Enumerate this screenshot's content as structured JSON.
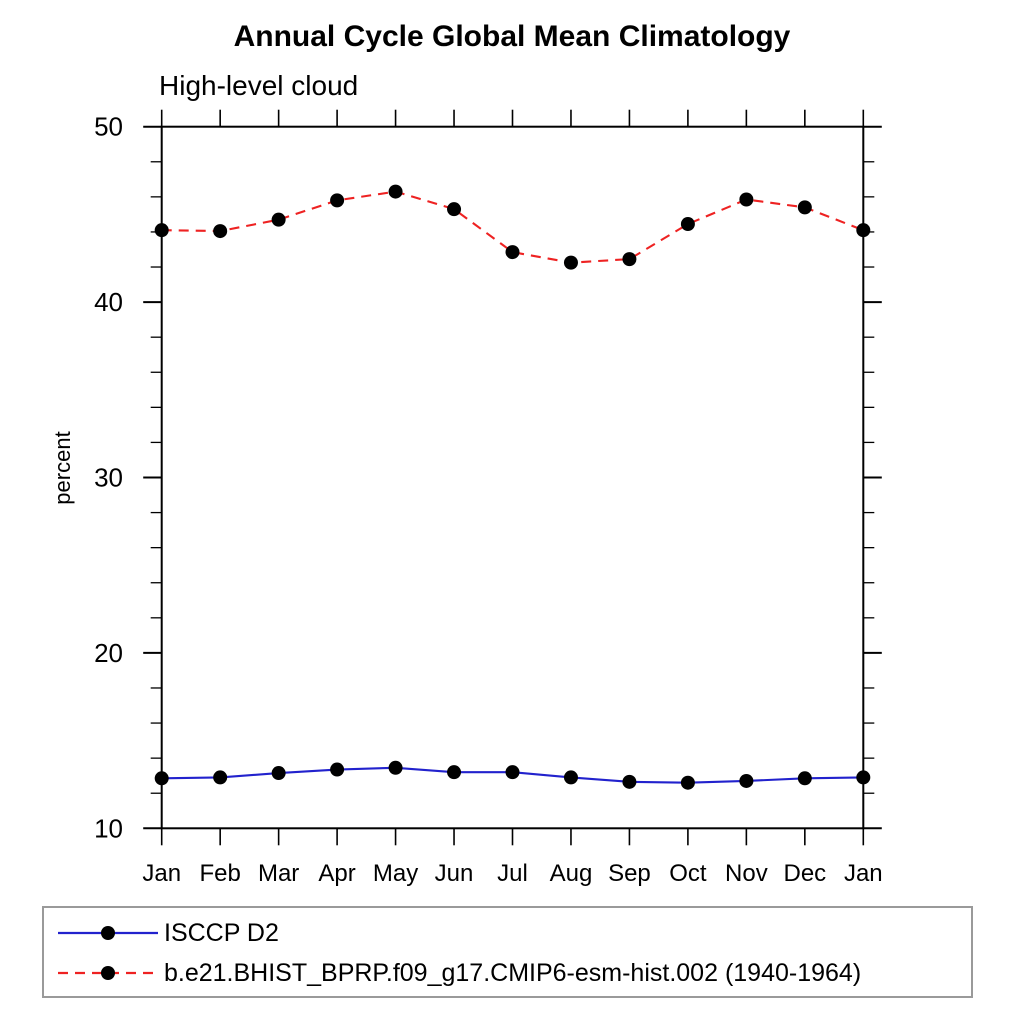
{
  "chart_data": {
    "type": "line",
    "title": "Annual Cycle Global Mean Climatology",
    "subtitle": "High-level cloud",
    "ylabel": "percent",
    "xlabel": "",
    "x_tick_labels": [
      "Jan",
      "Feb",
      "Mar",
      "Apr",
      "May",
      "Jun",
      "Jul",
      "Aug",
      "Sep",
      "Oct",
      "Nov",
      "Dec",
      "Jan"
    ],
    "ylim": [
      10,
      50
    ],
    "y_major_ticks": [
      10,
      20,
      30,
      40,
      50
    ],
    "y_minor_step": 2,
    "grid": false,
    "legend_position": "bottom",
    "marker_color": "#000000",
    "axis_color": "#000000",
    "legend_border_color": "#9a9a9a",
    "series": [
      {
        "name": "ISCCP D2",
        "color": "#2222cd",
        "style": "solid",
        "values": [
          12.85,
          12.9,
          13.15,
          13.35,
          13.45,
          13.2,
          13.2,
          12.9,
          12.65,
          12.6,
          12.7,
          12.85,
          12.9
        ]
      },
      {
        "name": "b.e21.BHIST_BPRP.f09_g17.CMIP6-esm-hist.002 (1940-1964)",
        "color": "#ee2222",
        "style": "dashed",
        "values": [
          44.1,
          44.05,
          44.7,
          45.8,
          46.3,
          45.3,
          42.85,
          42.25,
          42.45,
          44.45,
          45.85,
          45.4,
          44.1
        ]
      }
    ]
  }
}
